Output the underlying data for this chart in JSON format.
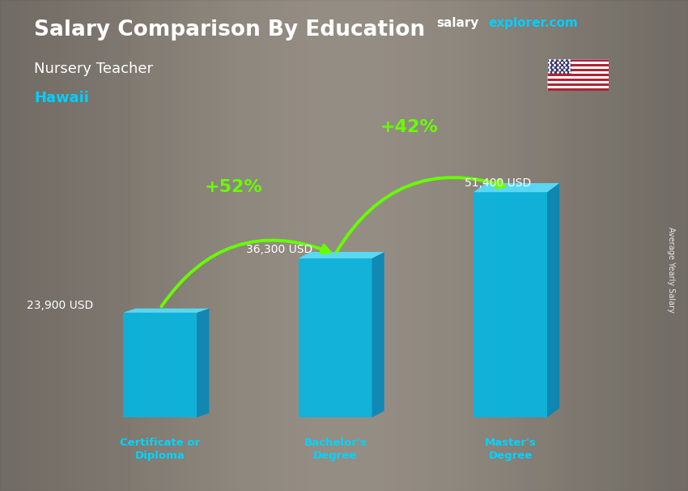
{
  "title": "Salary Comparison By Education",
  "subtitle": "Nursery Teacher",
  "location": "Hawaii",
  "categories": [
    "Certificate or\nDiploma",
    "Bachelor's\nDegree",
    "Master's\nDegree"
  ],
  "values": [
    23900,
    36300,
    51400
  ],
  "labels": [
    "23,900 USD",
    "36,300 USD",
    "51,400 USD"
  ],
  "bar_color_front": "#00b8e6",
  "bar_color_light": "#4dd8f8",
  "bar_color_dark": "#0088bb",
  "bar_color_top": "#55e0ff",
  "pct_changes": [
    "+52%",
    "+42%"
  ],
  "pct_color": "#66ff00",
  "title_color": "#ffffff",
  "subtitle_color": "#ffffff",
  "location_color": "#00cfff",
  "label_color": "#ffffff",
  "category_color": "#00d4ff",
  "ylabel": "Average Yearly Salary",
  "bar_width": 0.42,
  "ylim": [
    0,
    65000
  ],
  "bg_color": "#7a7a7a",
  "brand_color_salary": "#ffffff",
  "brand_color_explorer": "#00cfff",
  "brand_color_com": "#00cfff",
  "salaryexplorer_text": "salaryexplorer.com",
  "arrow_color": "#66ff00"
}
